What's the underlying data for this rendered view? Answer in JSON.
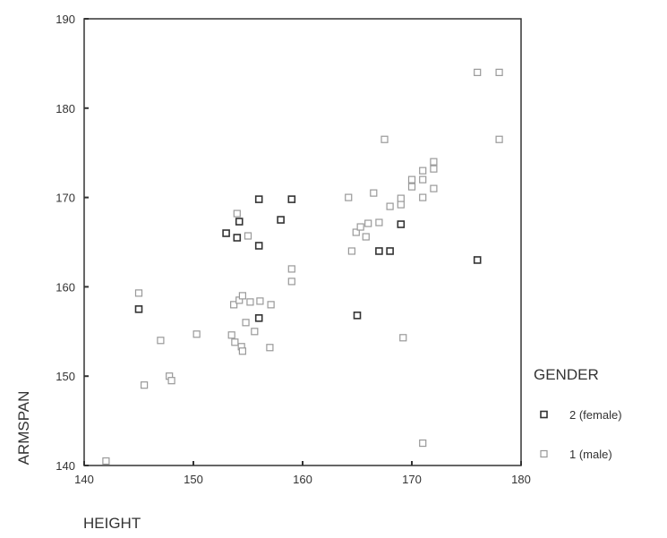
{
  "chart_data": {
    "type": "scatter",
    "title": "",
    "xlabel": "HEIGHT",
    "ylabel": "ARMSPAN",
    "xlim": [
      140,
      180
    ],
    "ylim": [
      140,
      190
    ],
    "xticks": [
      "140",
      "150",
      "160",
      "170",
      "180"
    ],
    "yticks": [
      "140",
      "150",
      "160",
      "170",
      "180",
      "190"
    ],
    "grid": false,
    "legend": {
      "title": "GENDER",
      "position": "right"
    },
    "series": [
      {
        "name": "2 (female)",
        "color": "#333333",
        "points": [
          [
            145,
            157.5
          ],
          [
            153,
            166
          ],
          [
            154,
            165.5
          ],
          [
            154.2,
            167.3
          ],
          [
            156,
            169.8
          ],
          [
            156,
            164.6
          ],
          [
            156,
            156.5
          ],
          [
            158,
            167.5
          ],
          [
            159,
            169.8
          ],
          [
            165,
            156.8
          ],
          [
            167,
            164
          ],
          [
            168,
            164
          ],
          [
            169,
            167
          ],
          [
            176,
            163
          ]
        ]
      },
      {
        "name": "1 (male)",
        "color": "#999999",
        "points": [
          [
            142,
            140.5
          ],
          [
            145,
            159.3
          ],
          [
            145.5,
            149
          ],
          [
            147,
            154
          ],
          [
            147.8,
            150
          ],
          [
            148,
            149.5
          ],
          [
            150.3,
            154.7
          ],
          [
            153.5,
            154.6
          ],
          [
            153.7,
            158
          ],
          [
            153.8,
            153.8
          ],
          [
            154,
            168.2
          ],
          [
            154.2,
            158.5
          ],
          [
            154.4,
            153.3
          ],
          [
            154.5,
            159
          ],
          [
            154.5,
            152.8
          ],
          [
            154.8,
            156
          ],
          [
            155,
            165.7
          ],
          [
            155.2,
            158.3
          ],
          [
            155.6,
            155
          ],
          [
            156.1,
            158.4
          ],
          [
            157,
            153.2
          ],
          [
            157.1,
            158
          ],
          [
            159,
            162
          ],
          [
            159,
            160.6
          ],
          [
            164.2,
            170
          ],
          [
            164.5,
            164
          ],
          [
            164.9,
            166.1
          ],
          [
            165.3,
            166.7
          ],
          [
            165.8,
            165.6
          ],
          [
            166,
            167.1
          ],
          [
            166.5,
            170.5
          ],
          [
            167,
            167.2
          ],
          [
            167.5,
            176.5
          ],
          [
            168,
            169
          ],
          [
            169,
            169.9
          ],
          [
            169,
            169.2
          ],
          [
            169.2,
            154.3
          ],
          [
            170,
            171.2
          ],
          [
            170,
            172
          ],
          [
            171,
            173
          ],
          [
            171,
            172
          ],
          [
            171,
            170
          ],
          [
            171,
            142.5
          ],
          [
            172,
            174
          ],
          [
            172,
            173.2
          ],
          [
            172,
            171
          ],
          [
            176,
            184
          ],
          [
            178,
            184
          ],
          [
            178,
            176.5
          ]
        ]
      }
    ]
  }
}
